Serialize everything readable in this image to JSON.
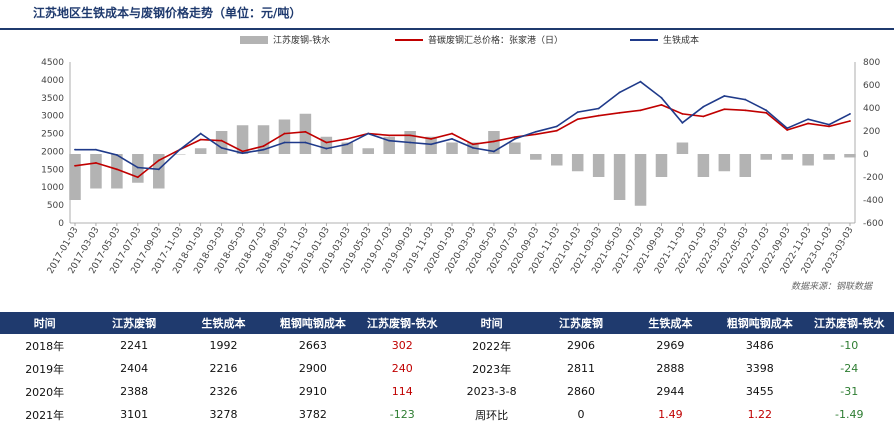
{
  "title": "江苏地区生铁成本与废钢价格走势（单位：元/吨）",
  "source": "数据来源：钢联数据",
  "colors": {
    "spread": "#b3b3b3",
    "scrap": "#c00000",
    "iron": "#1f3a8a",
    "header_bg": "#1f3a6e"
  },
  "chart_data": {
    "type": "line",
    "legend": [
      {
        "name": "江苏废钢-铁水",
        "kind": "bar",
        "axis": "right"
      },
      {
        "name": "普碳废钢汇总价格：张家港（日）",
        "kind": "line",
        "axis": "left"
      },
      {
        "name": "生铁成本",
        "kind": "line",
        "axis": "left"
      }
    ],
    "legend_position": "top",
    "left_axis": {
      "min": 0,
      "max": 4500,
      "ticks": [
        "0",
        "500",
        "1000",
        "1500",
        "2000",
        "2500",
        "3000",
        "3500",
        "4000",
        "4500"
      ]
    },
    "right_axis": {
      "min": -600,
      "max": 800,
      "ticks": [
        "-600",
        "-400",
        "-200",
        "0",
        "200",
        "400",
        "600",
        "800"
      ]
    },
    "x_ticks": [
      "2017-01-03",
      "2017-03-03",
      "2017-05-03",
      "2017-07-03",
      "2017-09-03",
      "2017-11-03",
      "2018-01-03",
      "2018-03-03",
      "2018-05-03",
      "2018-07-03",
      "2018-09-03",
      "2018-11-03",
      "2019-01-03",
      "2019-03-03",
      "2019-05-03",
      "2019-07-03",
      "2019-09-03",
      "2019-11-03",
      "2020-01-03",
      "2020-03-03",
      "2020-05-03",
      "2020-07-03",
      "2020-09-03",
      "2020-11-03",
      "2021-01-03",
      "2021-03-03",
      "2021-05-03",
      "2021-07-03",
      "2021-09-03",
      "2021-11-03",
      "2022-01-03",
      "2022-03-03",
      "2022-05-03",
      "2022-07-03",
      "2022-09-03",
      "2022-11-03",
      "2023-01-03",
      "2023-03-03"
    ],
    "grid": false,
    "dates": [
      "2017-01",
      "2017-03",
      "2017-05",
      "2017-07",
      "2017-09",
      "2017-11",
      "2018-01",
      "2018-03",
      "2018-05",
      "2018-07",
      "2018-09",
      "2018-11",
      "2019-01",
      "2019-03",
      "2019-05",
      "2019-07",
      "2019-09",
      "2019-11",
      "2020-01",
      "2020-03",
      "2020-05",
      "2020-07",
      "2020-09",
      "2020-11",
      "2021-01",
      "2021-03",
      "2021-05",
      "2021-07",
      "2021-09",
      "2021-11",
      "2022-01",
      "2022-03",
      "2022-05",
      "2022-07",
      "2022-09",
      "2022-11",
      "2023-01",
      "2023-03"
    ],
    "series": [
      {
        "name": "普碳废钢汇总价格：张家港（日）",
        "axis": "left",
        "values": [
          1600,
          1680,
          1500,
          1280,
          1750,
          2050,
          2330,
          2300,
          2000,
          2150,
          2500,
          2550,
          2250,
          2350,
          2500,
          2450,
          2450,
          2350,
          2500,
          2200,
          2280,
          2400,
          2480,
          2580,
          2900,
          3000,
          3080,
          3150,
          3300,
          3050,
          2980,
          3180,
          3150,
          3080,
          2600,
          2780,
          2700,
          2850
        ]
      },
      {
        "name": "生铁成本",
        "axis": "left",
        "values": [
          2050,
          2050,
          1900,
          1550,
          1500,
          2050,
          2500,
          2100,
          1950,
          2050,
          2250,
          2250,
          2080,
          2200,
          2500,
          2300,
          2250,
          2200,
          2350,
          2100,
          2000,
          2350,
          2550,
          2700,
          3100,
          3200,
          3650,
          3950,
          3500,
          2800,
          3250,
          3550,
          3450,
          3150,
          2650,
          2900,
          2750,
          3050
        ]
      },
      {
        "name": "江苏废钢-铁水",
        "axis": "right",
        "kind": "bar",
        "values": [
          -400,
          -300,
          -300,
          -250,
          -300,
          0,
          50,
          200,
          250,
          250,
          300,
          350,
          150,
          100,
          50,
          150,
          200,
          150,
          100,
          100,
          200,
          100,
          -50,
          -100,
          -150,
          -200,
          -400,
          -450,
          -200,
          100,
          -200,
          -150,
          -200,
          -50,
          -50,
          -100,
          -50,
          -30
        ]
      }
    ]
  },
  "table": {
    "headers": [
      "时间",
      "江苏废钢",
      "生铁成本",
      "粗钢吨钢成本",
      "江苏废钢-铁水",
      "时间",
      "江苏废钢",
      "生铁成本",
      "粗钢吨钢成本",
      "江苏废钢-铁水"
    ],
    "rows": [
      [
        {
          "text": "2018年",
          "tone": ""
        },
        {
          "text": "2241",
          "tone": ""
        },
        {
          "text": "1992",
          "tone": ""
        },
        {
          "text": "2663",
          "tone": ""
        },
        {
          "text": "302",
          "tone": "red"
        },
        {
          "text": "2022年",
          "tone": ""
        },
        {
          "text": "2906",
          "tone": ""
        },
        {
          "text": "2969",
          "tone": ""
        },
        {
          "text": "3486",
          "tone": ""
        },
        {
          "text": "-10",
          "tone": "green"
        }
      ],
      [
        {
          "text": "2019年",
          "tone": ""
        },
        {
          "text": "2404",
          "tone": ""
        },
        {
          "text": "2216",
          "tone": ""
        },
        {
          "text": "2900",
          "tone": ""
        },
        {
          "text": "240",
          "tone": "red"
        },
        {
          "text": "2023年",
          "tone": ""
        },
        {
          "text": "2811",
          "tone": ""
        },
        {
          "text": "2888",
          "tone": ""
        },
        {
          "text": "3398",
          "tone": ""
        },
        {
          "text": "-24",
          "tone": "green"
        }
      ],
      [
        {
          "text": "2020年",
          "tone": ""
        },
        {
          "text": "2388",
          "tone": ""
        },
        {
          "text": "2326",
          "tone": ""
        },
        {
          "text": "2910",
          "tone": ""
        },
        {
          "text": "114",
          "tone": "red"
        },
        {
          "text": "2023-3-8",
          "tone": ""
        },
        {
          "text": "2860",
          "tone": ""
        },
        {
          "text": "2944",
          "tone": ""
        },
        {
          "text": "3455",
          "tone": ""
        },
        {
          "text": "-31",
          "tone": "green"
        }
      ],
      [
        {
          "text": "2021年",
          "tone": ""
        },
        {
          "text": "3101",
          "tone": ""
        },
        {
          "text": "3278",
          "tone": ""
        },
        {
          "text": "3782",
          "tone": ""
        },
        {
          "text": "-123",
          "tone": "green"
        },
        {
          "text": "周环比",
          "tone": ""
        },
        {
          "text": "0",
          "tone": ""
        },
        {
          "text": "1.49",
          "tone": "red"
        },
        {
          "text": "1.22",
          "tone": "red"
        },
        {
          "text": "-1.49",
          "tone": "green"
        }
      ]
    ]
  }
}
